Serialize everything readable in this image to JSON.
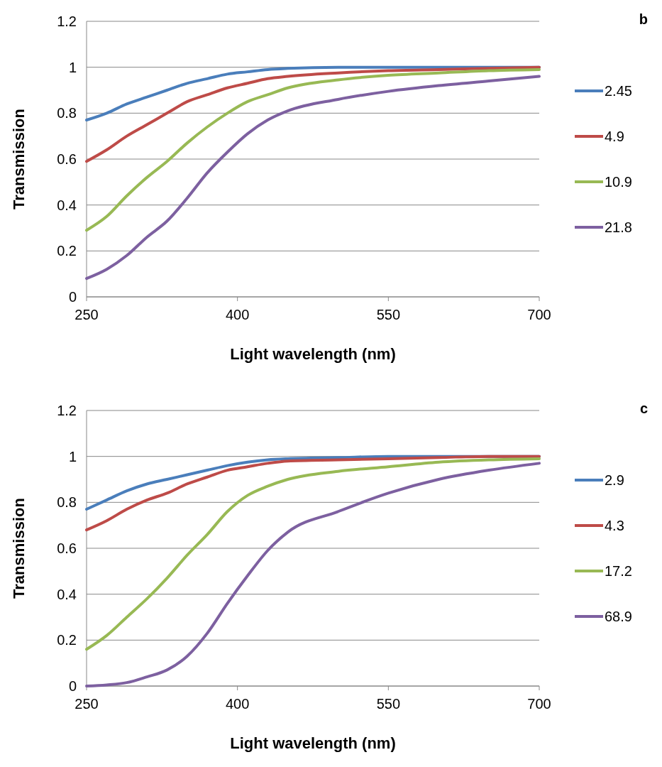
{
  "chart_data": [
    {
      "type": "line",
      "annotations": [
        "b"
      ],
      "xlabel": "Light wavelength (nm)",
      "ylabel": "Transmission",
      "x": [
        250,
        270,
        290,
        310,
        330,
        350,
        370,
        390,
        410,
        430,
        450,
        500,
        550,
        600,
        650,
        700
      ],
      "xlim": [
        250,
        700
      ],
      "xticks": [
        250,
        400,
        550,
        700
      ],
      "ylim": [
        0,
        1.2
      ],
      "yticks": [
        0,
        0.2,
        0.4,
        0.6,
        0.8,
        1,
        1.2
      ],
      "grid": "y",
      "legend": "right",
      "series": [
        {
          "name": "2.45",
          "color": "#4a7ebb",
          "values": [
            0.77,
            0.8,
            0.84,
            0.87,
            0.9,
            0.93,
            0.95,
            0.97,
            0.98,
            0.99,
            0.995,
            1,
            1,
            1,
            1,
            1
          ]
        },
        {
          "name": "4.9",
          "color": "#be4b48",
          "values": [
            0.59,
            0.64,
            0.7,
            0.75,
            0.8,
            0.85,
            0.88,
            0.91,
            0.93,
            0.95,
            0.96,
            0.975,
            0.985,
            0.99,
            0.995,
            1
          ]
        },
        {
          "name": "10.9",
          "color": "#98b954",
          "values": [
            0.29,
            0.35,
            0.44,
            0.52,
            0.59,
            0.67,
            0.74,
            0.8,
            0.85,
            0.88,
            0.91,
            0.945,
            0.965,
            0.975,
            0.985,
            0.99
          ]
        },
        {
          "name": "21.8",
          "color": "#7d60a0",
          "values": [
            0.08,
            0.12,
            0.18,
            0.26,
            0.33,
            0.43,
            0.54,
            0.63,
            0.71,
            0.77,
            0.81,
            0.86,
            0.895,
            0.92,
            0.94,
            0.96
          ]
        }
      ]
    },
    {
      "type": "line",
      "annotations": [
        "c"
      ],
      "xlabel": "Light wavelength (nm)",
      "ylabel": "Transmission",
      "x": [
        250,
        270,
        290,
        310,
        330,
        350,
        370,
        390,
        410,
        430,
        450,
        500,
        550,
        600,
        650,
        700
      ],
      "xlim": [
        250,
        700
      ],
      "xticks": [
        250,
        400,
        550,
        700
      ],
      "ylim": [
        0,
        1.2
      ],
      "yticks": [
        0,
        0.2,
        0.4,
        0.6,
        0.8,
        1,
        1.2
      ],
      "grid": "y",
      "legend": "right",
      "series": [
        {
          "name": "2.9",
          "color": "#4a7ebb",
          "values": [
            0.77,
            0.81,
            0.85,
            0.88,
            0.9,
            0.92,
            0.94,
            0.96,
            0.975,
            0.985,
            0.99,
            0.995,
            1,
            1,
            1,
            1
          ]
        },
        {
          "name": "4.3",
          "color": "#be4b48",
          "values": [
            0.68,
            0.72,
            0.77,
            0.81,
            0.84,
            0.88,
            0.91,
            0.94,
            0.955,
            0.97,
            0.98,
            0.985,
            0.99,
            0.995,
            1,
            1
          ]
        },
        {
          "name": "17.2",
          "color": "#98b954",
          "values": [
            0.16,
            0.22,
            0.3,
            0.38,
            0.47,
            0.57,
            0.66,
            0.76,
            0.83,
            0.87,
            0.9,
            0.935,
            0.955,
            0.975,
            0.985,
            0.99
          ]
        },
        {
          "name": "68.9",
          "color": "#7d60a0",
          "values": [
            0,
            0.005,
            0.015,
            0.04,
            0.07,
            0.13,
            0.23,
            0.36,
            0.48,
            0.59,
            0.67,
            0.76,
            0.84,
            0.9,
            0.94,
            0.97
          ]
        }
      ]
    }
  ]
}
